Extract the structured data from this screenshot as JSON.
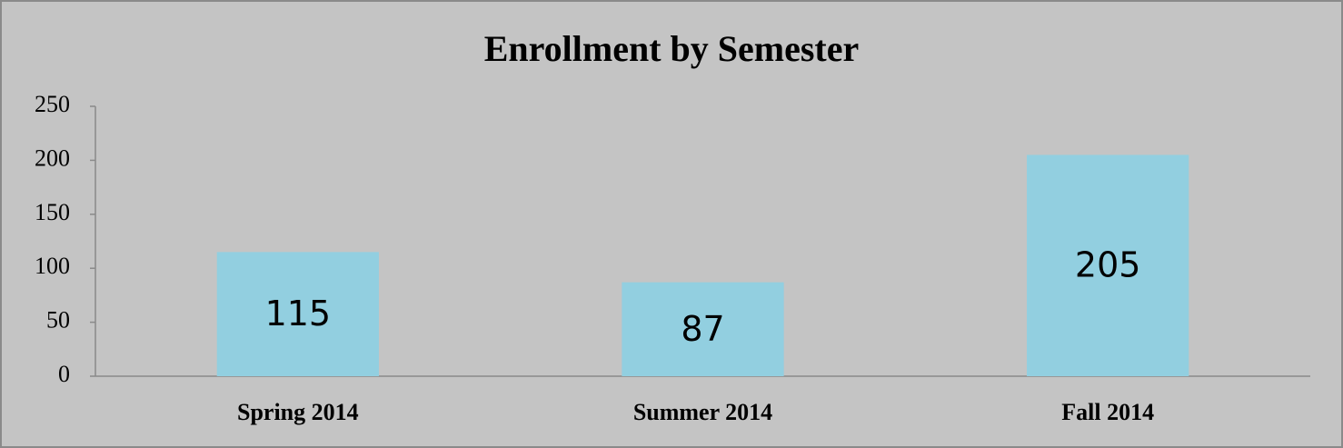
{
  "chart_data": {
    "type": "bar",
    "title": "Enrollment by Semester",
    "categories": [
      "Spring 2014",
      "Summer 2014",
      "Fall 2014"
    ],
    "values": [
      115,
      87,
      205
    ],
    "color": "#92cfe0",
    "ylim": [
      0,
      250
    ],
    "yticks": [
      0,
      50,
      100,
      150,
      200,
      250
    ],
    "grid": false
  }
}
